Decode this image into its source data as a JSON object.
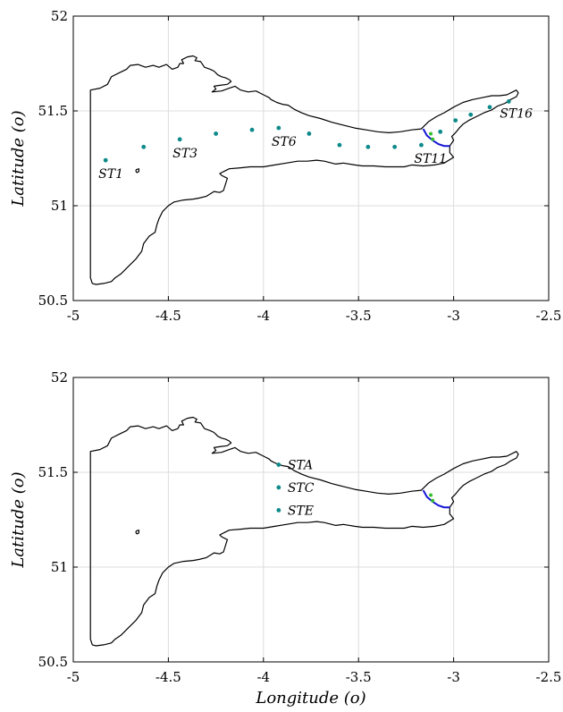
{
  "chart_data": [
    {
      "type": "scatter",
      "xlabel": "",
      "ylabel": "Latitude (o)",
      "xlim": [
        -5,
        -2.5
      ],
      "ylim": [
        50.5,
        52
      ],
      "x_ticks": [
        -5,
        -4.5,
        -4,
        -3.5,
        -3,
        -2.5
      ],
      "x_tick_labels": [
        "-5",
        "-4.5",
        "-4",
        "-3.5",
        "-3",
        "-2.5"
      ],
      "y_ticks": [
        50.5,
        51,
        51.5,
        52
      ],
      "y_tick_labels": [
        "50.5",
        "51",
        "51.5",
        "52"
      ],
      "grid": true,
      "point_color": "#0e8a8a",
      "extra_point_color": "#36c030",
      "boundary_color": "#1515d6",
      "stations": [
        {
          "x": -4.83,
          "y": 51.24,
          "label": "ST1"
        },
        {
          "x": -4.63,
          "y": 51.31,
          "label": ""
        },
        {
          "x": -4.44,
          "y": 51.35,
          "label": "ST3"
        },
        {
          "x": -4.25,
          "y": 51.38,
          "label": ""
        },
        {
          "x": -4.06,
          "y": 51.4,
          "label": ""
        },
        {
          "x": -3.92,
          "y": 51.41,
          "label": "ST6"
        },
        {
          "x": -3.76,
          "y": 51.38,
          "label": ""
        },
        {
          "x": -3.6,
          "y": 51.32,
          "label": ""
        },
        {
          "x": -3.45,
          "y": 51.31,
          "label": ""
        },
        {
          "x": -3.31,
          "y": 51.31,
          "label": ""
        },
        {
          "x": -3.17,
          "y": 51.32,
          "label": "ST11"
        },
        {
          "x": -3.07,
          "y": 51.39,
          "label": ""
        },
        {
          "x": -2.99,
          "y": 51.45,
          "label": ""
        },
        {
          "x": -2.91,
          "y": 51.48,
          "label": ""
        },
        {
          "x": -2.81,
          "y": 51.52,
          "label": ""
        },
        {
          "x": -2.71,
          "y": 51.55,
          "label": "ST16"
        }
      ],
      "extra_points": [
        {
          "x": -3.12,
          "y": 51.38
        },
        {
          "x": -3.11,
          "y": 51.35
        }
      ]
    },
    {
      "type": "scatter",
      "xlabel": "Longitude (o)",
      "ylabel": "Latitude (o)",
      "xlim": [
        -5,
        -2.5
      ],
      "ylim": [
        50.5,
        52
      ],
      "x_ticks": [
        -5,
        -4.5,
        -4,
        -3.5,
        -3,
        -2.5
      ],
      "x_tick_labels": [
        "-5",
        "-4.5",
        "-4",
        "-3.5",
        "-3",
        "-2.5"
      ],
      "y_ticks": [
        50.5,
        51,
        51.5,
        52
      ],
      "y_tick_labels": [
        "50.5",
        "51",
        "51.5",
        "52"
      ],
      "grid": true,
      "point_color": "#0e8a8a",
      "extra_point_color": "#36c030",
      "boundary_color": "#1515d6",
      "stations": [
        {
          "x": -3.92,
          "y": 51.54,
          "label": "STA"
        },
        {
          "x": -3.92,
          "y": 51.42,
          "label": "STC"
        },
        {
          "x": -3.92,
          "y": 51.3,
          "label": "STE"
        }
      ],
      "extra_points": [
        {
          "x": -3.12,
          "y": 51.38
        },
        {
          "x": -3.11,
          "y": 51.35
        }
      ]
    }
  ]
}
